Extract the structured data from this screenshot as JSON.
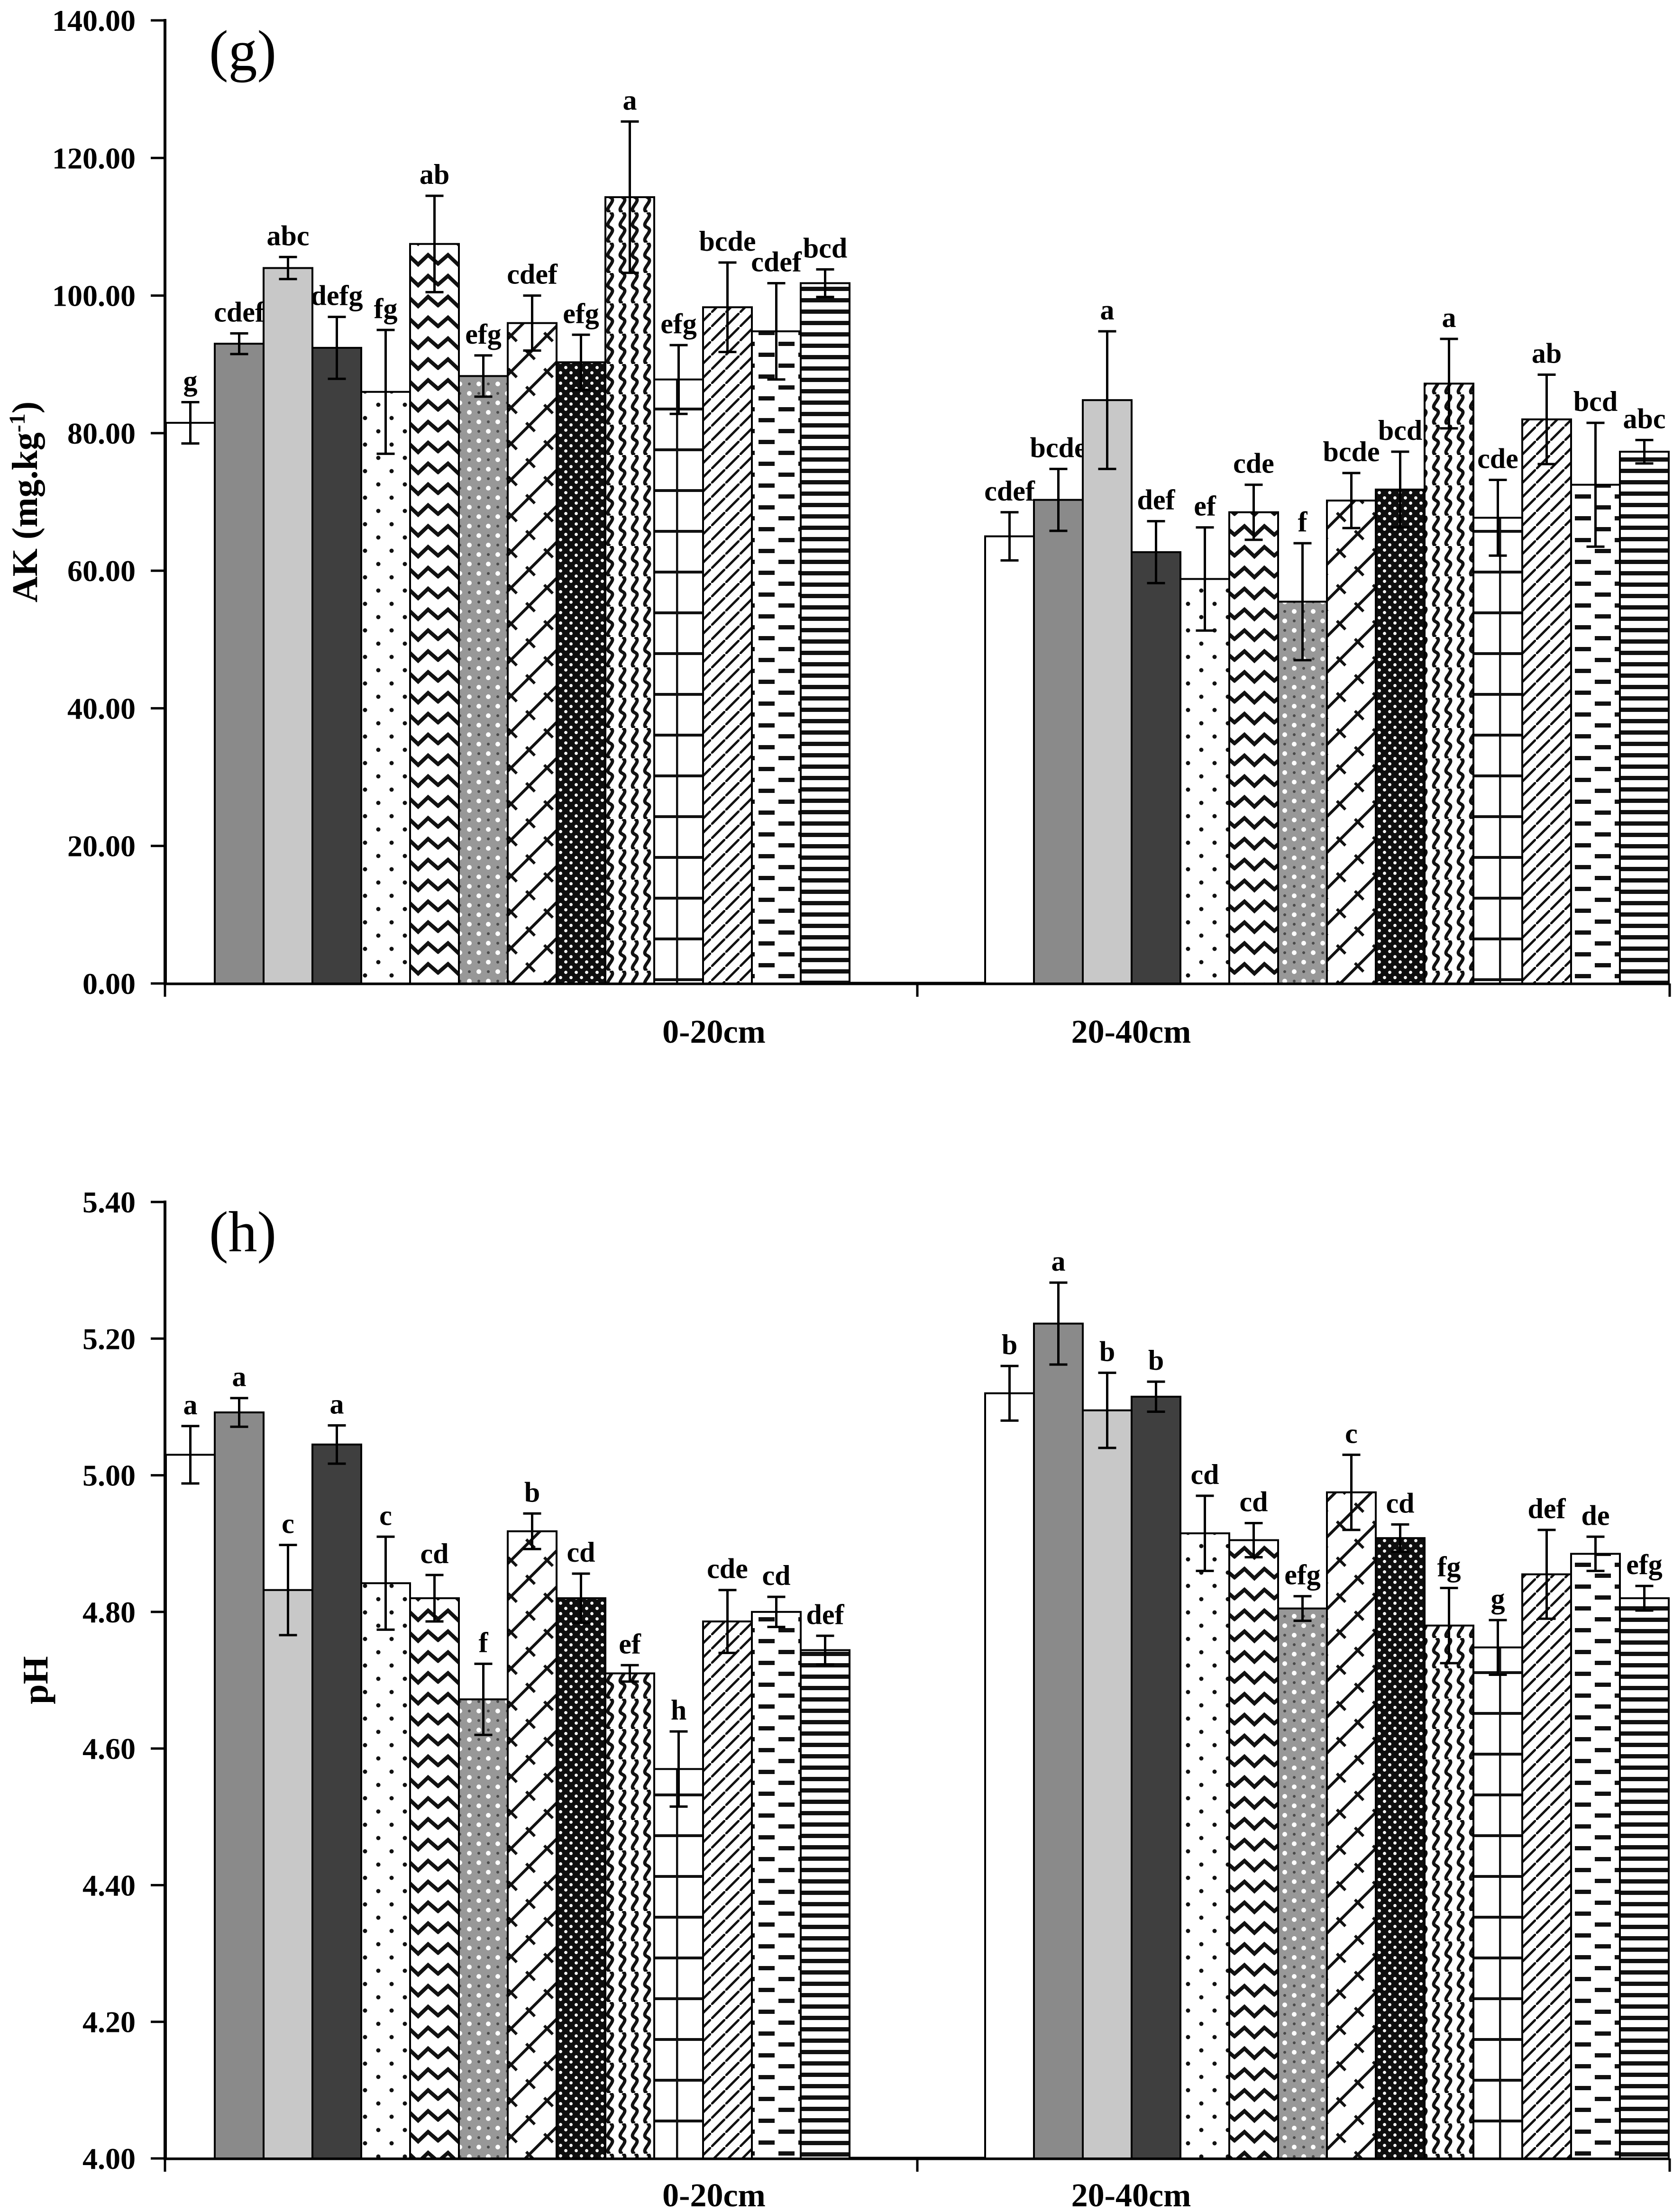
{
  "meta": {
    "background_color": "#ffffff",
    "ink_color": "#000000",
    "gray_medium": "#8a8a8a",
    "gray_light": "#c8c8c8",
    "gray_dark": "#3f3f3f",
    "figure_description": "Two stacked bar-chart panels (g) AK and (h) pH for soil depths 0-20cm and 20-40cm, 14 patterned treatment bars per group with error bars and significance letters"
  },
  "chart_data": [
    {
      "id": "g",
      "type": "bar",
      "panel_label": "(g)",
      "ylabel": "AK (mg.kg-1)",
      "ylabel_parts": {
        "prefix": "AK (mg.kg",
        "sup": "-1",
        "suffix": ")"
      },
      "ylim": [
        0,
        140
      ],
      "ytick_step": 20,
      "ytick_labels": [
        "140.00",
        "120.00",
        "100.00",
        "80.00",
        "60.00",
        "40.00",
        "20.00",
        "0.00"
      ],
      "grid": false,
      "legend": "none",
      "categories": [
        "0-20cm",
        "20-40cm"
      ],
      "series": [
        {
          "name": "white",
          "pattern": "solid-white",
          "values": [
            81.5,
            65.0
          ],
          "errors": [
            3.0,
            3.5
          ],
          "letters": [
            "g",
            "cdef"
          ]
        },
        {
          "name": "gray",
          "pattern": "solid-gray",
          "values": [
            93.0,
            70.3
          ],
          "errors": [
            1.5,
            4.5
          ],
          "letters": [
            "cdef",
            "bcde"
          ]
        },
        {
          "name": "light-gray",
          "pattern": "solid-lightgray",
          "values": [
            104.0,
            84.8
          ],
          "errors": [
            1.6,
            10.0
          ],
          "letters": [
            "abc",
            "a"
          ]
        },
        {
          "name": "dark-gray",
          "pattern": "solid-darkgray",
          "values": [
            92.4,
            62.7
          ],
          "errors": [
            4.5,
            4.5
          ],
          "letters": [
            "defg",
            "def"
          ]
        },
        {
          "name": "sparse-dots",
          "pattern": "dots-sparse",
          "values": [
            86.0,
            58.8
          ],
          "errors": [
            9.0,
            7.5
          ],
          "letters": [
            "fg",
            "ef"
          ]
        },
        {
          "name": "zigzag",
          "pattern": "zigzag",
          "values": [
            107.5,
            68.5
          ],
          "errors": [
            7.0,
            4.0
          ],
          "letters": [
            "ab",
            "cde"
          ]
        },
        {
          "name": "gray-speckle",
          "pattern": "gray-speckle",
          "values": [
            88.3,
            55.5
          ],
          "errors": [
            3.0,
            8.5
          ],
          "letters": [
            "efg",
            "f"
          ]
        },
        {
          "name": "diagonal-weave",
          "pattern": "diagonal-weave",
          "values": [
            96.0,
            70.2
          ],
          "errors": [
            4.0,
            4.0
          ],
          "letters": [
            "cdef",
            "bcde"
          ]
        },
        {
          "name": "black-dotted",
          "pattern": "black-dotted",
          "values": [
            90.3,
            71.8
          ],
          "errors": [
            4.0,
            5.5
          ],
          "letters": [
            "efg",
            "bcd"
          ]
        },
        {
          "name": "vertical-waves",
          "pattern": "vertical-waves",
          "values": [
            114.3,
            87.2
          ],
          "errors": [
            11.0,
            6.5
          ],
          "letters": [
            "a",
            "a"
          ]
        },
        {
          "name": "grid",
          "pattern": "grid-large",
          "values": [
            87.8,
            67.7
          ],
          "errors": [
            5.0,
            5.5
          ],
          "letters": [
            "efg",
            "cde"
          ]
        },
        {
          "name": "diagonal-lines",
          "pattern": "diagonal-lines",
          "values": [
            98.3,
            82.0
          ],
          "errors": [
            6.5,
            6.5
          ],
          "letters": [
            "bcde",
            "ab"
          ]
        },
        {
          "name": "dashes",
          "pattern": "dashes-horizontal",
          "values": [
            94.8,
            72.5
          ],
          "errors": [
            7.0,
            9.0
          ],
          "letters": [
            "cdef",
            "bcd"
          ]
        },
        {
          "name": "horizontal-lines",
          "pattern": "lines-horizontal",
          "values": [
            101.8,
            77.3
          ],
          "errors": [
            2.0,
            1.7
          ],
          "letters": [
            "bcd",
            "abc"
          ]
        }
      ]
    },
    {
      "id": "h",
      "type": "bar",
      "panel_label": "(h)",
      "ylabel": "pH",
      "ylabel_parts": {
        "prefix": "pH",
        "sup": "",
        "suffix": ""
      },
      "ylim": [
        4.0,
        5.4
      ],
      "ytick_step": 0.2,
      "ytick_labels": [
        "5.40",
        "5.20",
        "5.00",
        "4.80",
        "4.60",
        "4.40",
        "4.20",
        "4.00"
      ],
      "grid": false,
      "legend": "none",
      "categories": [
        "0-20cm",
        "20-40cm"
      ],
      "series": [
        {
          "name": "white",
          "pattern": "solid-white",
          "values": [
            5.03,
            5.12
          ],
          "errors": [
            0.042,
            0.04
          ],
          "letters": [
            "a",
            "b"
          ]
        },
        {
          "name": "gray",
          "pattern": "solid-gray",
          "values": [
            5.092,
            5.222
          ],
          "errors": [
            0.021,
            0.06
          ],
          "letters": [
            "a",
            "a"
          ]
        },
        {
          "name": "light-gray",
          "pattern": "solid-lightgray",
          "values": [
            4.832,
            5.095
          ],
          "errors": [
            0.066,
            0.055
          ],
          "letters": [
            "c",
            "b"
          ]
        },
        {
          "name": "dark-gray",
          "pattern": "solid-darkgray",
          "values": [
            5.045,
            5.115
          ],
          "errors": [
            0.028,
            0.022
          ],
          "letters": [
            "a",
            "b"
          ]
        },
        {
          "name": "sparse-dots",
          "pattern": "dots-sparse",
          "values": [
            4.842,
            4.915
          ],
          "errors": [
            0.068,
            0.055
          ],
          "letters": [
            "c",
            "cd"
          ]
        },
        {
          "name": "zigzag",
          "pattern": "zigzag",
          "values": [
            4.82,
            4.905
          ],
          "errors": [
            0.034,
            0.025
          ],
          "letters": [
            "cd",
            "cd"
          ]
        },
        {
          "name": "gray-speckle",
          "pattern": "gray-speckle",
          "values": [
            4.672,
            4.805
          ],
          "errors": [
            0.052,
            0.018
          ],
          "letters": [
            "f",
            "efg"
          ]
        },
        {
          "name": "diagonal-weave",
          "pattern": "diagonal-weave",
          "values": [
            4.918,
            4.975
          ],
          "errors": [
            0.026,
            0.055
          ],
          "letters": [
            "b",
            "c"
          ]
        },
        {
          "name": "black-dotted",
          "pattern": "black-dotted",
          "values": [
            4.82,
            4.908
          ],
          "errors": [
            0.036,
            0.02
          ],
          "letters": [
            "cd",
            "cd"
          ]
        },
        {
          "name": "vertical-waves",
          "pattern": "vertical-waves",
          "values": [
            4.71,
            4.78
          ],
          "errors": [
            0.012,
            0.055
          ],
          "letters": [
            "ef",
            "fg"
          ]
        },
        {
          "name": "grid",
          "pattern": "grid-large",
          "values": [
            4.57,
            4.748
          ],
          "errors": [
            0.055,
            0.04
          ],
          "letters": [
            "h",
            "g"
          ]
        },
        {
          "name": "diagonal-lines",
          "pattern": "diagonal-lines",
          "values": [
            4.786,
            4.855
          ],
          "errors": [
            0.046,
            0.065
          ],
          "letters": [
            "cde",
            "def"
          ]
        },
        {
          "name": "dashes",
          "pattern": "dashes-horizontal",
          "values": [
            4.8,
            4.885
          ],
          "errors": [
            0.022,
            0.025
          ],
          "letters": [
            "cd",
            "de"
          ]
        },
        {
          "name": "horizontal-lines",
          "pattern": "lines-horizontal",
          "values": [
            4.744,
            4.82
          ],
          "errors": [
            0.021,
            0.018
          ],
          "letters": [
            "def",
            "efg"
          ]
        }
      ]
    }
  ],
  "patterns_legend": [
    {
      "id": "solid-white",
      "desc": "white fill, black outline"
    },
    {
      "id": "solid-gray",
      "desc": "medium gray fill"
    },
    {
      "id": "solid-lightgray",
      "desc": "light gray fill"
    },
    {
      "id": "solid-darkgray",
      "desc": "dark gray fill"
    },
    {
      "id": "dots-sparse",
      "desc": "white with sparse black dots"
    },
    {
      "id": "zigzag",
      "desc": "horizontal zigzag chevron lines"
    },
    {
      "id": "gray-speckle",
      "desc": "gray with white speckle dots"
    },
    {
      "id": "diagonal-weave",
      "desc": "diagonal brick weave hatch"
    },
    {
      "id": "black-dotted",
      "desc": "black with white dots"
    },
    {
      "id": "vertical-waves",
      "desc": "vertical wavy scale lines"
    },
    {
      "id": "grid-large",
      "desc": "large open grid"
    },
    {
      "id": "diagonal-lines",
      "desc": "thin diagonal lines"
    },
    {
      "id": "dashes-horizontal",
      "desc": "staggered horizontal dashes"
    },
    {
      "id": "lines-horizontal",
      "desc": "dense horizontal lines"
    }
  ]
}
